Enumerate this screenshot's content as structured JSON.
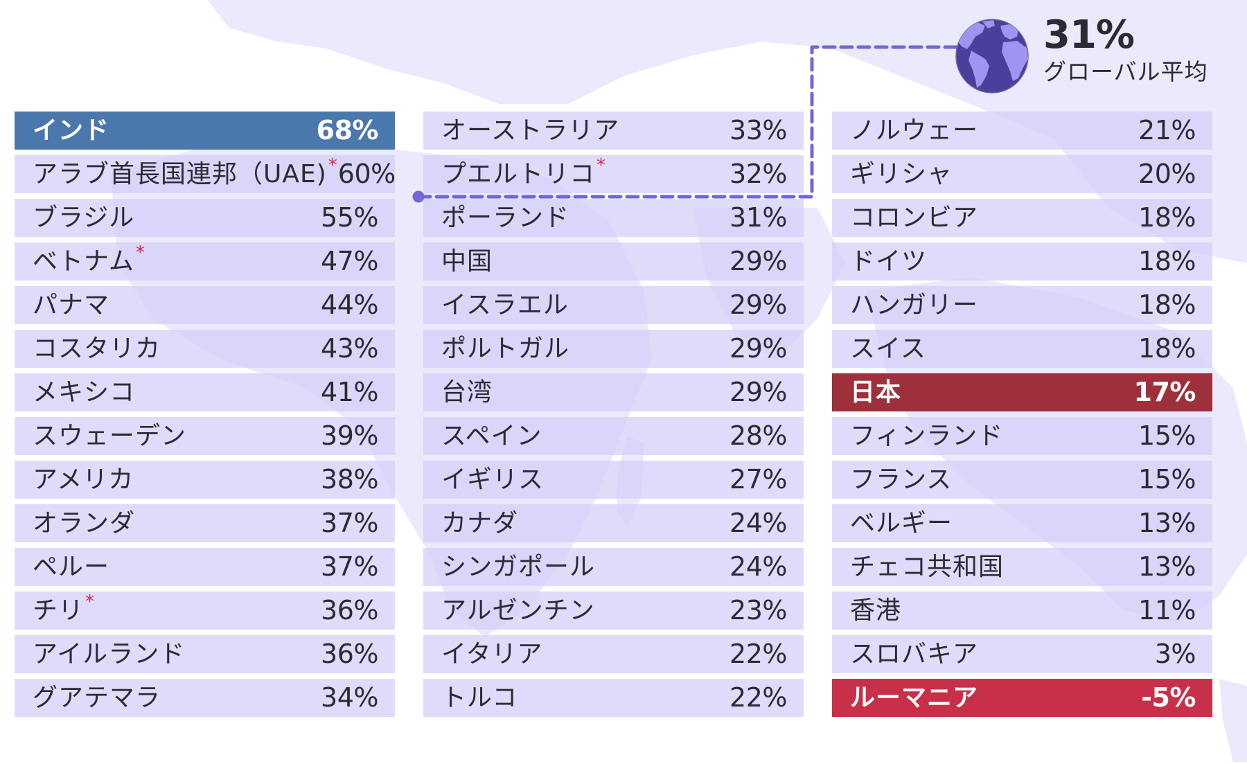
{
  "global_average": {
    "value": "31%",
    "label": "グローバル平均",
    "icon": "globe-icon"
  },
  "colors": {
    "row_bg": "#d2cefa",
    "highlight_top": "#4a78ad",
    "highlight_japan": "#9e2f3b",
    "highlight_bottom": "#c8304a",
    "connector": "#7067d9",
    "asterisk": "#d8284a",
    "map": "#ebe9fc"
  },
  "columns": [
    {
      "rows": [
        {
          "name": "インド",
          "value": "68%",
          "star": "",
          "highlight": "hl-blue"
        },
        {
          "name": "アラブ首長国連邦（UAE)",
          "value": "60%",
          "star": "*",
          "highlight": ""
        },
        {
          "name": "ブラジル",
          "value": "55%",
          "star": "",
          "highlight": ""
        },
        {
          "name": "ベトナム",
          "value": "47%",
          "star": "*",
          "highlight": ""
        },
        {
          "name": "パナマ",
          "value": "44%",
          "star": "",
          "highlight": ""
        },
        {
          "name": "コスタリカ",
          "value": "43%",
          "star": "",
          "highlight": ""
        },
        {
          "name": "メキシコ",
          "value": "41%",
          "star": "",
          "highlight": ""
        },
        {
          "name": "スウェーデン",
          "value": "39%",
          "star": "",
          "highlight": ""
        },
        {
          "name": "アメリカ",
          "value": "38%",
          "star": "",
          "highlight": ""
        },
        {
          "name": "オランダ",
          "value": "37%",
          "star": "",
          "highlight": ""
        },
        {
          "name": "ペルー",
          "value": "37%",
          "star": "",
          "highlight": ""
        },
        {
          "name": "チリ",
          "value": "36%",
          "star": "*",
          "highlight": ""
        },
        {
          "name": "アイルランド",
          "value": "36%",
          "star": "",
          "highlight": ""
        },
        {
          "name": "グアテマラ",
          "value": "34%",
          "star": "",
          "highlight": ""
        }
      ]
    },
    {
      "rows": [
        {
          "name": "オーストラリア",
          "value": "33%",
          "star": "",
          "highlight": ""
        },
        {
          "name": "プエルトリコ",
          "value": "32%",
          "star": "*",
          "highlight": ""
        },
        {
          "name": "ポーランド",
          "value": "31%",
          "star": "",
          "highlight": ""
        },
        {
          "name": "中国",
          "value": "29%",
          "star": "",
          "highlight": ""
        },
        {
          "name": "イスラエル",
          "value": "29%",
          "star": "",
          "highlight": ""
        },
        {
          "name": "ポルトガル",
          "value": "29%",
          "star": "",
          "highlight": ""
        },
        {
          "name": "台湾",
          "value": "29%",
          "star": "",
          "highlight": ""
        },
        {
          "name": "スペイン",
          "value": "28%",
          "star": "",
          "highlight": ""
        },
        {
          "name": "イギリス",
          "value": "27%",
          "star": "",
          "highlight": ""
        },
        {
          "name": "カナダ",
          "value": "24%",
          "star": "",
          "highlight": ""
        },
        {
          "name": "シンガポール",
          "value": "24%",
          "star": "",
          "highlight": ""
        },
        {
          "name": "アルゼンチン",
          "value": "23%",
          "star": "",
          "highlight": ""
        },
        {
          "name": "イタリア",
          "value": "22%",
          "star": "",
          "highlight": ""
        },
        {
          "name": "トルコ",
          "value": "22%",
          "star": "",
          "highlight": ""
        }
      ]
    },
    {
      "rows": [
        {
          "name": "ノルウェー",
          "value": "21%",
          "star": "",
          "highlight": ""
        },
        {
          "name": "ギリシャ",
          "value": "20%",
          "star": "",
          "highlight": ""
        },
        {
          "name": "コロンビア",
          "value": "18%",
          "star": "",
          "highlight": ""
        },
        {
          "name": "ドイツ",
          "value": "18%",
          "star": "",
          "highlight": ""
        },
        {
          "name": "ハンガリー",
          "value": "18%",
          "star": "",
          "highlight": ""
        },
        {
          "name": "スイス",
          "value": "18%",
          "star": "",
          "highlight": ""
        },
        {
          "name": "日本",
          "value": "17%",
          "star": "",
          "highlight": "hl-darkred"
        },
        {
          "name": "フィンランド",
          "value": "15%",
          "star": "",
          "highlight": ""
        },
        {
          "name": "フランス",
          "value": "15%",
          "star": "",
          "highlight": ""
        },
        {
          "name": "ベルギー",
          "value": "13%",
          "star": "",
          "highlight": ""
        },
        {
          "name": "チェコ共和国",
          "value": "13%",
          "star": "",
          "highlight": ""
        },
        {
          "name": "香港",
          "value": "11%",
          "star": "",
          "highlight": ""
        },
        {
          "name": "スロバキア",
          "value": "3%",
          "star": "",
          "highlight": ""
        },
        {
          "name": "ルーマニア",
          "value": "-5%",
          "star": "",
          "highlight": "hl-red"
        }
      ]
    }
  ],
  "chart_data": {
    "type": "table",
    "title": "",
    "reference": {
      "label": "グローバル平均",
      "value": 31,
      "position_after": "プエルトリコ"
    },
    "categories": [
      "インド",
      "アラブ首長国連邦（UAE)",
      "ブラジル",
      "ベトナム",
      "パナマ",
      "コスタリカ",
      "メキシコ",
      "スウェーデン",
      "アメリカ",
      "オランダ",
      "ペルー",
      "チリ",
      "アイルランド",
      "グアテマラ",
      "オーストラリア",
      "プエルトリコ",
      "ポーランド",
      "中国",
      "イスラエル",
      "ポルトガル",
      "台湾",
      "スペイン",
      "イギリス",
      "カナダ",
      "シンガポール",
      "アルゼンチン",
      "イタリア",
      "トルコ",
      "ノルウェー",
      "ギリシャ",
      "コロンビア",
      "ドイツ",
      "ハンガリー",
      "スイス",
      "日本",
      "フィンランド",
      "フランス",
      "ベルギー",
      "チェコ共和国",
      "香港",
      "スロバキア",
      "ルーマニア"
    ],
    "values": [
      68,
      60,
      55,
      47,
      44,
      43,
      41,
      39,
      38,
      37,
      37,
      36,
      36,
      34,
      33,
      32,
      31,
      29,
      29,
      29,
      29,
      28,
      27,
      24,
      24,
      23,
      22,
      22,
      21,
      20,
      18,
      18,
      18,
      18,
      17,
      15,
      15,
      13,
      13,
      11,
      3,
      -5
    ],
    "asterisked": [
      "アラブ首長国連邦（UAE)",
      "ベトナム",
      "チリ",
      "プエルトリコ"
    ],
    "highlighted": {
      "インド": "#4a78ad",
      "日本": "#9e2f3b",
      "ルーマニア": "#c8304a"
    },
    "unit": "%",
    "layout": "3 columns × 14 rows, sorted descending"
  }
}
